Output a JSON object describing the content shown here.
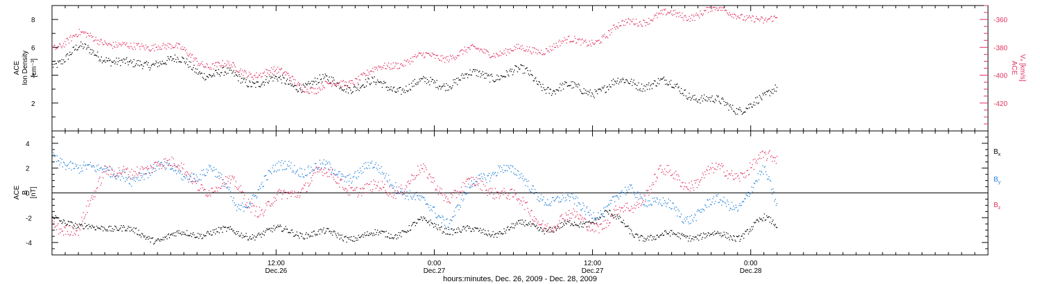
{
  "colors": {
    "black": "#000000",
    "pink": "#e0315f",
    "blue": "#1f7fd9",
    "frame": "#000000",
    "background": "#ffffff"
  },
  "x_axis": {
    "title": "hours:minutes, Dec. 26, 2009 - Dec. 28, 2009",
    "range_hours": [
      -5,
      66
    ],
    "ticks": [
      {
        "hour": 12,
        "time": "12:00",
        "date": "Dec.26"
      },
      {
        "hour": 24,
        "time": "0:00",
        "date": "Dec.27"
      },
      {
        "hour": 36,
        "time": "12:00",
        "date": "Dec.27"
      },
      {
        "hour": 48,
        "time": "0:00",
        "date": "Dec.28"
      }
    ]
  },
  "chart_data": [
    {
      "type": "scatter",
      "title": "",
      "ylabel_left": [
        "ACE",
        "Ion Density",
        "[cm⁻³]"
      ],
      "ylabel_right": [
        "ACE",
        "Vₓ [km/s]"
      ],
      "left_ylim": [
        0,
        9
      ],
      "left_ticks": [
        2,
        4,
        6,
        8
      ],
      "right_ylim": [
        -440,
        -350
      ],
      "right_ticks": [
        -360,
        -380,
        -400,
        -420
      ],
      "series": [
        {
          "name": "",
          "axis": "left",
          "color": "#000000",
          "x": [
            -5,
            -3,
            -1,
            1,
            3,
            5,
            7,
            9,
            11,
            13,
            15,
            17,
            19,
            21,
            23,
            25,
            27,
            29,
            31,
            33,
            35,
            37,
            39,
            41,
            43,
            45,
            47,
            49,
            50
          ],
          "y": [
            5.0,
            5.8,
            5.5,
            4.5,
            5.2,
            4.8,
            4.2,
            3.8,
            3.6,
            3.4,
            3.5,
            3.4,
            3.3,
            3.2,
            3.3,
            3.6,
            3.9,
            4.2,
            4.1,
            3.0,
            3.0,
            3.1,
            3.6,
            3.4,
            3.0,
            2.0,
            1.8,
            2.1,
            3.2
          ],
          "spread": 0.6
        },
        {
          "name": "",
          "axis": "right",
          "color": "#e0315f",
          "x": [
            -5,
            -3,
            -1,
            1,
            3,
            5,
            7,
            9,
            11,
            13,
            15,
            17,
            19,
            21,
            23,
            25,
            27,
            29,
            31,
            33,
            35,
            37,
            39,
            41,
            43,
            45,
            47,
            49,
            50
          ],
          "y": [
            -378,
            -372,
            -374,
            -382,
            -376,
            -384,
            -392,
            -396,
            -398,
            -400,
            -412,
            -404,
            -400,
            -390,
            -388,
            -385,
            -383,
            -382,
            -383,
            -378,
            -376,
            -372,
            -360,
            -358,
            -356,
            -354,
            -354,
            -364,
            -358
          ],
          "spread": 5
        }
      ]
    },
    {
      "type": "scatter",
      "title": "",
      "ylabel_left": [
        "ACE",
        "B",
        "[nT]"
      ],
      "ylim": [
        -5,
        5
      ],
      "ticks": [
        -4,
        -2,
        0,
        2,
        4
      ],
      "zero_line": true,
      "legend": {
        "position": "right",
        "entries": [
          {
            "main": "B",
            "sub": "x",
            "color": "#000000"
          },
          {
            "main": "B",
            "sub": "y",
            "color": "#1f7fd9"
          },
          {
            "main": "B",
            "sub": "z",
            "color": "#e0315f"
          }
        ]
      },
      "series": [
        {
          "name": "Bx",
          "color": "#000000",
          "x": [
            -5,
            -3,
            -1,
            1,
            3,
            5,
            7,
            9,
            11,
            13,
            15,
            17,
            19,
            21,
            23,
            25,
            27,
            29,
            31,
            33,
            35,
            37,
            39,
            41,
            43,
            45,
            47,
            49,
            50
          ],
          "y": [
            -1.5,
            -3.0,
            -2.5,
            -3.2,
            -3.6,
            -3.4,
            -3.0,
            -3.3,
            -3.2,
            -3.0,
            -3.3,
            -3.4,
            -3.5,
            -3.2,
            -2.4,
            -2.8,
            -3.2,
            -3.0,
            -2.6,
            -2.8,
            -2.6,
            -1.5,
            -3.2,
            -3.6,
            -3.3,
            -3.5,
            -3.4,
            -2.2,
            -2.6
          ],
          "spread": 0.5
        },
        {
          "name": "By",
          "color": "#1f7fd9",
          "x": [
            -5,
            -3,
            -1,
            1,
            3,
            5,
            7,
            9,
            11,
            13,
            15,
            17,
            19,
            21,
            23,
            25,
            27,
            29,
            31,
            33,
            35,
            37,
            39,
            41,
            43,
            45,
            47,
            49,
            50
          ],
          "y": [
            3.5,
            1.5,
            2.5,
            0.5,
            2.8,
            0.8,
            2.5,
            -1.5,
            1.0,
            2.3,
            2.0,
            1.5,
            2.0,
            1.0,
            -1.0,
            -2.0,
            0.5,
            2.5,
            0.5,
            -0.5,
            -1.0,
            -1.5,
            0.5,
            -1.0,
            -1.8,
            -1.0,
            -0.8,
            1.5,
            -1.0
          ],
          "spread": 0.8
        },
        {
          "name": "Bz",
          "color": "#e0315f",
          "x": [
            -5,
            -3,
            -1,
            1,
            3,
            5,
            7,
            9,
            11,
            13,
            15,
            17,
            19,
            21,
            23,
            25,
            27,
            29,
            31,
            33,
            35,
            37,
            39,
            41,
            43,
            45,
            47,
            49,
            50
          ],
          "y": [
            -2.0,
            -3.5,
            2.5,
            1.0,
            3.0,
            1.5,
            0.5,
            0.5,
            -1.5,
            0.0,
            1.5,
            1.0,
            0.0,
            0.5,
            1.5,
            0.0,
            0.5,
            0.5,
            -1.5,
            -2.5,
            -2.0,
            -2.5,
            -1.0,
            1.5,
            1.0,
            1.5,
            1.8,
            2.5,
            2.8
          ],
          "spread": 0.9
        }
      ]
    }
  ]
}
